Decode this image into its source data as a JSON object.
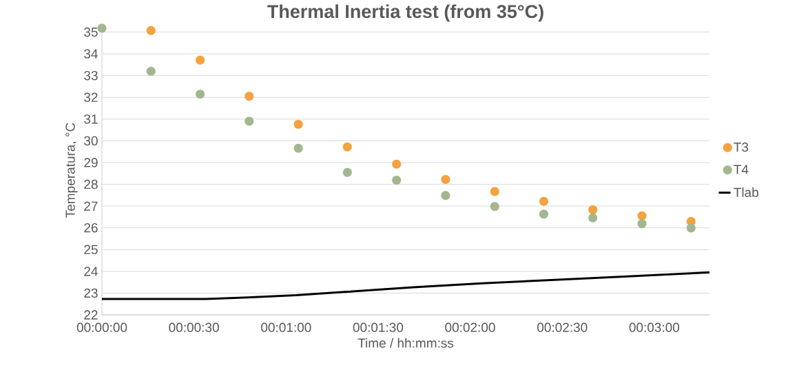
{
  "chart_data": {
    "type": "scatter",
    "title": "Thermal Inertia test (from 35°C)",
    "xlabel": "Time / hh:mm:ss",
    "ylabel": "Temperatura, °C",
    "x": [
      0,
      0.00444,
      0.00889,
      0.01333,
      0.01778,
      0.02222,
      0.02667,
      0.03111,
      0.03556,
      0.04,
      0.04444,
      0.04889,
      0.05333
    ],
    "series": [
      {
        "name": "T3",
        "color": "#f4a23f",
        "values": [
          null,
          35.07,
          33.71,
          32.05,
          30.76,
          29.72,
          28.93,
          28.22,
          27.67,
          27.22,
          26.83,
          26.55,
          26.29
        ]
      },
      {
        "name": "T4",
        "color": "#a3b78f",
        "values": [
          35.18,
          33.2,
          32.14,
          30.9,
          29.66,
          28.55,
          28.19,
          27.49,
          26.98,
          26.63,
          26.46,
          26.19,
          25.99
        ]
      },
      {
        "name": "Tlab",
        "type": "line",
        "marker": "none",
        "color": "#000000",
        "x": [
          0,
          0.00944,
          0.01322,
          0.01758,
          0.02194,
          0.02819,
          0.03444,
          0.04067,
          0.04692,
          0.055
        ],
        "values": [
          22.73,
          22.73,
          22.8,
          22.9,
          23.05,
          23.27,
          23.45,
          23.6,
          23.75,
          23.95
        ]
      }
    ],
    "xlim": [
      0,
      0.055
    ],
    "ylim": [
      22,
      35.3
    ],
    "xticks": [
      {
        "value": 0,
        "label": "00:00:00"
      },
      {
        "value": 0.00833,
        "label": "00:00:30"
      },
      {
        "value": 0.01667,
        "label": "00:01:00"
      },
      {
        "value": 0.025,
        "label": "00:01:30"
      },
      {
        "value": 0.03333,
        "label": "00:02:00"
      },
      {
        "value": 0.04167,
        "label": "00:02:30"
      },
      {
        "value": 0.05,
        "label": "00:03:00"
      }
    ],
    "yticks": [
      22,
      23,
      24,
      25,
      26,
      27,
      28,
      29,
      30,
      31,
      32,
      33,
      34,
      35
    ],
    "grid": "y",
    "legend": "right",
    "marker": "circle"
  }
}
